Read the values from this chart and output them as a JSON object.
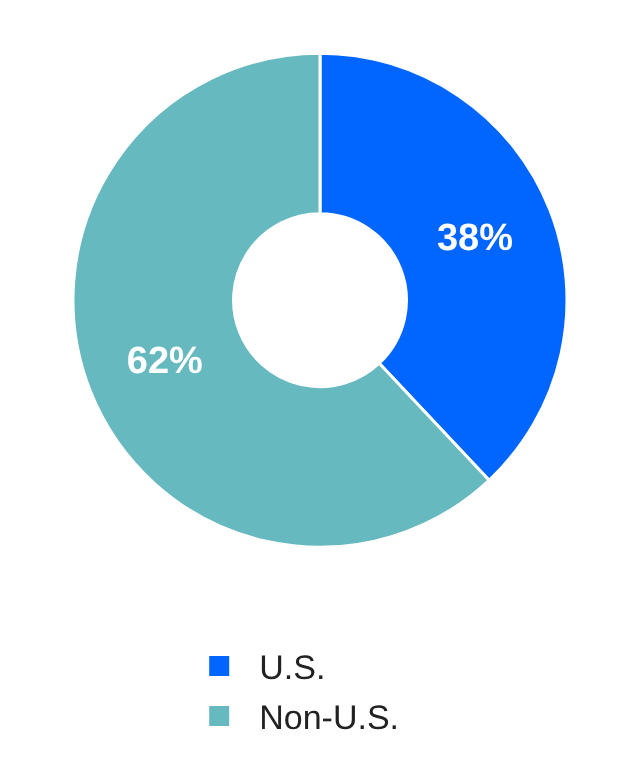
{
  "chart_data": {
    "type": "donut",
    "categories": [
      "U.S.",
      "Non-U.S."
    ],
    "values": [
      38,
      62
    ],
    "colors": [
      "#0066ff",
      "#66b9be"
    ],
    "value_labels": [
      "38%",
      "62%"
    ],
    "legend": "bottom"
  }
}
